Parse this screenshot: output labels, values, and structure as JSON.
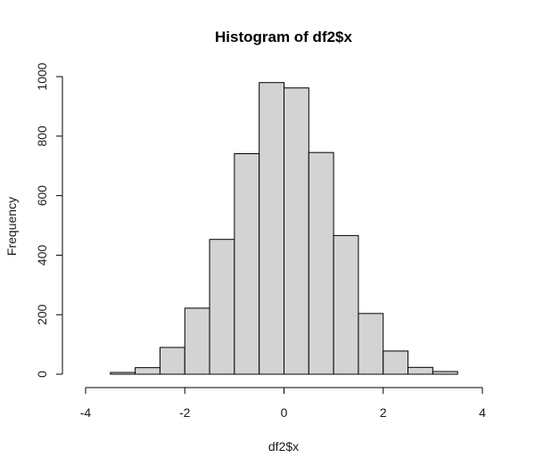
{
  "chart_data": {
    "type": "bar",
    "title": "Histogram of df2$x",
    "xlabel": "df2$x",
    "ylabel": "Frequency",
    "bin_width": 0.5,
    "bins": [
      {
        "start": -3.5,
        "end": -3.0,
        "count": 6
      },
      {
        "start": -3.0,
        "end": -2.5,
        "count": 22
      },
      {
        "start": -2.5,
        "end": -2.0,
        "count": 90
      },
      {
        "start": -2.0,
        "end": -1.5,
        "count": 222
      },
      {
        "start": -1.5,
        "end": -1.0,
        "count": 453
      },
      {
        "start": -1.0,
        "end": -0.5,
        "count": 741
      },
      {
        "start": -0.5,
        "end": 0.0,
        "count": 980
      },
      {
        "start": 0.0,
        "end": 0.5,
        "count": 962
      },
      {
        "start": 0.5,
        "end": 1.0,
        "count": 745
      },
      {
        "start": 1.0,
        "end": 1.5,
        "count": 466
      },
      {
        "start": 1.5,
        "end": 2.0,
        "count": 204
      },
      {
        "start": 2.0,
        "end": 2.5,
        "count": 78
      },
      {
        "start": 2.5,
        "end": 3.0,
        "count": 23
      },
      {
        "start": 3.0,
        "end": 3.5,
        "count": 9
      }
    ],
    "xlim": [
      -4,
      4
    ],
    "ylim": [
      0,
      1000
    ],
    "x_ticks": [
      -4,
      -2,
      0,
      2,
      4
    ],
    "y_ticks": [
      0,
      200,
      400,
      600,
      800,
      1000
    ],
    "grid": false,
    "legend": "none",
    "bar_fill": "#d3d3d3",
    "bar_stroke": "#000000"
  }
}
